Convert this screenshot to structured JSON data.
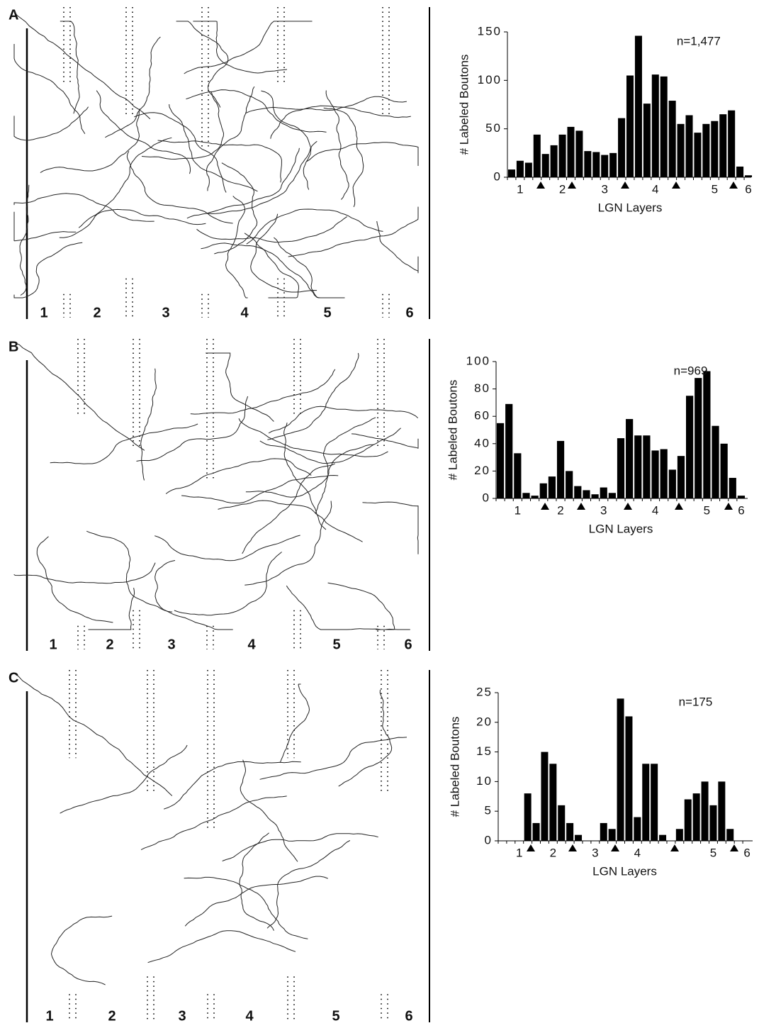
{
  "figure": {
    "panels": [
      {
        "label": "A",
        "layers": [
          "1",
          "2",
          "3",
          "4",
          "5",
          "6"
        ]
      },
      {
        "label": "B",
        "layers": [
          "1",
          "2",
          "3",
          "4",
          "5",
          "6"
        ]
      },
      {
        "label": "C",
        "layers": [
          "1",
          "2",
          "3",
          "4",
          "5",
          "6"
        ]
      }
    ]
  },
  "chart_data": [
    {
      "type": "bar",
      "y_label": "# Labeled Boutons",
      "x_label": "LGN Layers",
      "annotation": "n=1,477",
      "color": "#000000",
      "categories": [
        null,
        "1",
        null,
        null,
        null,
        null,
        "2",
        null,
        null,
        null,
        null,
        "3",
        null,
        null,
        null,
        null,
        null,
        "4",
        null,
        null,
        null,
        null,
        null,
        null,
        "5",
        null,
        null,
        null,
        "6"
      ],
      "values": [
        8,
        17,
        15,
        44,
        24,
        33,
        44,
        52,
        48,
        27,
        26,
        23,
        25,
        61,
        105,
        146,
        76,
        106,
        104,
        79,
        55,
        64,
        46,
        55,
        58,
        65,
        69,
        11,
        2
      ],
      "ylim": [
        0,
        150
      ],
      "yticks": [
        0,
        50,
        100,
        150
      ]
    },
    {
      "type": "bar",
      "y_label": "# Labeled Boutons",
      "x_label": "LGN Layers",
      "annotation": "n=969",
      "color": "#000000",
      "categories": [
        null,
        null,
        "1",
        null,
        null,
        null,
        null,
        "2",
        null,
        null,
        null,
        null,
        "3",
        null,
        null,
        null,
        null,
        null,
        "4",
        null,
        null,
        null,
        null,
        null,
        "5",
        null,
        null,
        null,
        "6"
      ],
      "values": [
        55,
        69,
        33,
        4,
        2,
        11,
        16,
        42,
        20,
        9,
        6,
        3,
        8,
        4,
        44,
        58,
        46,
        46,
        35,
        36,
        21,
        31,
        75,
        88,
        93,
        53,
        40,
        15,
        2
      ],
      "ylim": [
        0,
        100
      ],
      "yticks": [
        0,
        20,
        40,
        60,
        80,
        100
      ]
    },
    {
      "type": "bar",
      "y_label": "# Labeled Boutons",
      "x_label": "LGN Layers",
      "annotation": "n=175",
      "color": "#000000",
      "categories": [
        null,
        null,
        "1",
        null,
        null,
        null,
        "2",
        null,
        null,
        null,
        null,
        "3",
        null,
        null,
        null,
        null,
        "4",
        null,
        null,
        null,
        null,
        null,
        null,
        null,
        null,
        "5",
        null,
        null,
        null,
        "6"
      ],
      "values": [
        0,
        0,
        0,
        8,
        3,
        15,
        13,
        6,
        3,
        1,
        0,
        0,
        3,
        2,
        24,
        21,
        4,
        13,
        13,
        1,
        0,
        2,
        7,
        8,
        10,
        6,
        10,
        2,
        0,
        0
      ],
      "ylim": [
        0,
        25
      ],
      "yticks": [
        0,
        5,
        10,
        15,
        20,
        25
      ]
    }
  ]
}
